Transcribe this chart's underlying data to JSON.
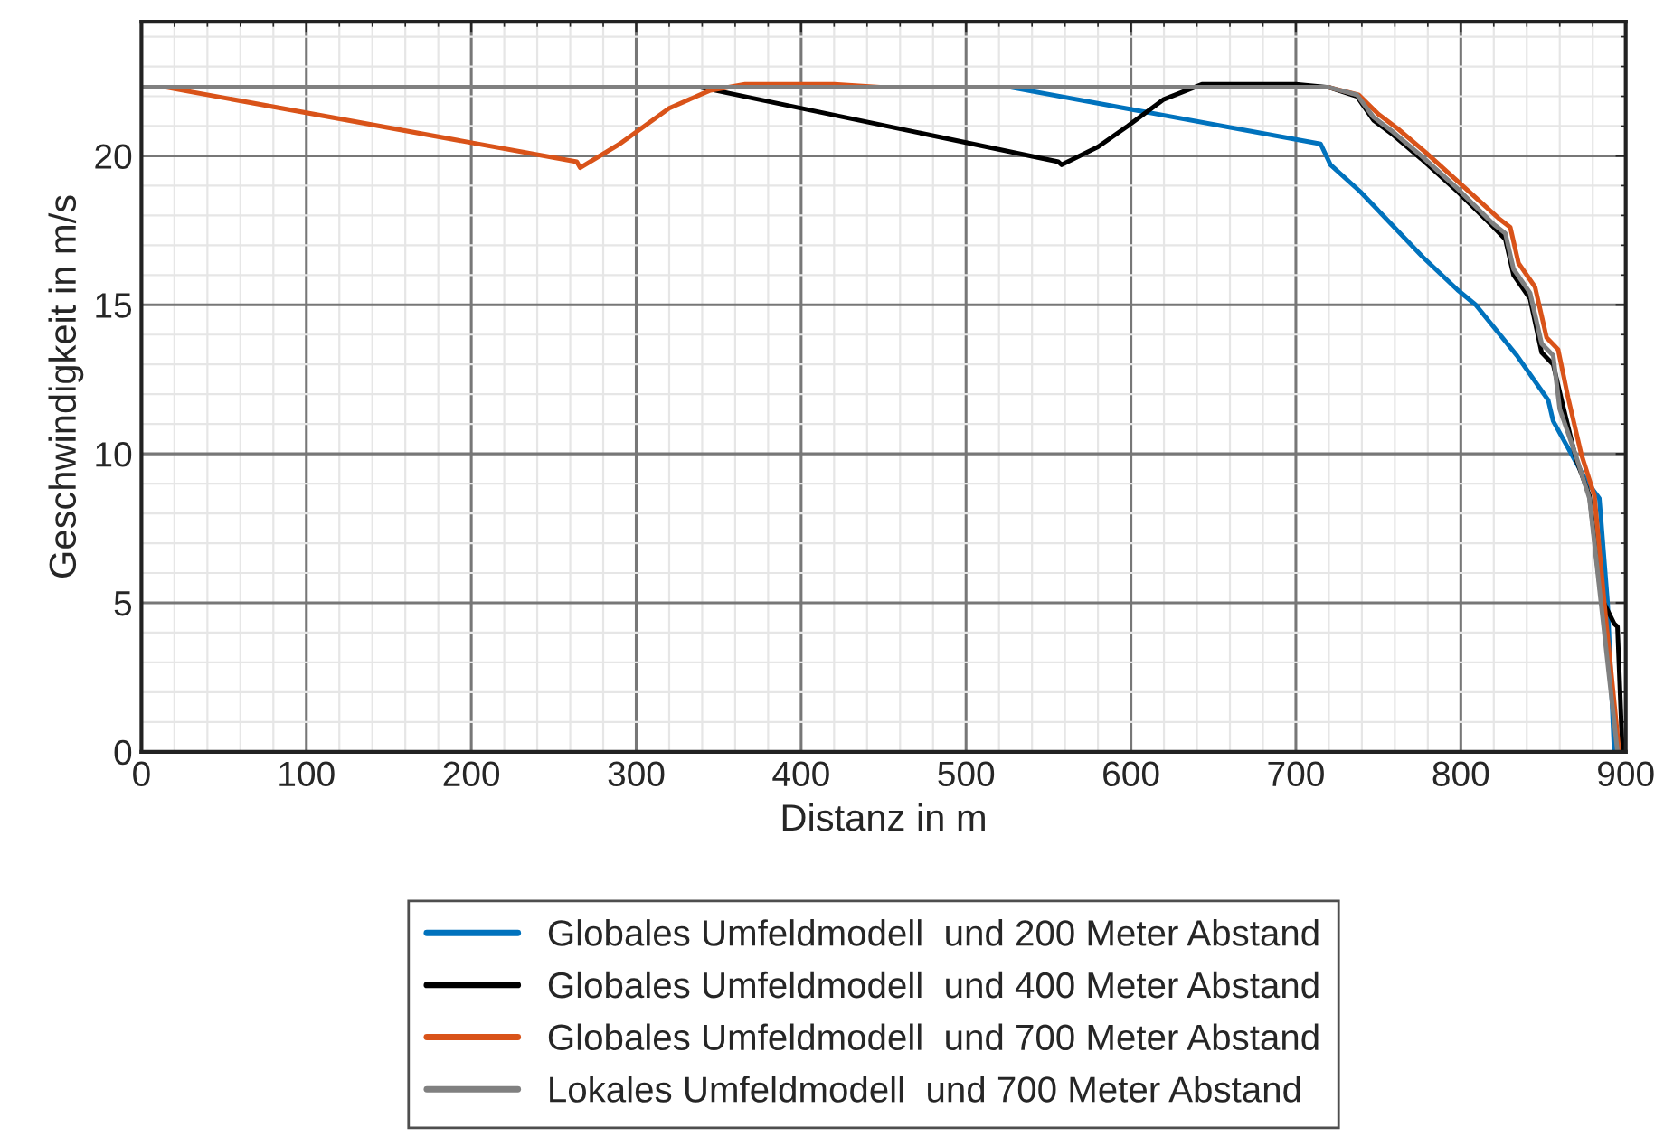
{
  "chart_data": {
    "type": "line",
    "xlabel": "Distanz in m",
    "ylabel": "Geschwindigkeit in m/s",
    "xlim": [
      0,
      900
    ],
    "ylim": [
      0,
      24.5
    ],
    "xticks": [
      0,
      100,
      200,
      300,
      400,
      500,
      600,
      700,
      800,
      900
    ],
    "yticks": [
      0,
      5,
      10,
      15,
      20
    ],
    "grid": true,
    "legend": "bottom",
    "line_style": "solid",
    "marker": "none",
    "series": [
      {
        "name": "Globales Umfeldmodell  und 200 Meter Abstand",
        "color": "#0072bd",
        "x": [
          0,
          527,
          715,
          721,
          739,
          758,
          777,
          798,
          809,
          834,
          853,
          856,
          876,
          884,
          889,
          893
        ],
        "values": [
          22.3,
          22.3,
          20.4,
          19.7,
          18.8,
          17.7,
          16.6,
          15.5,
          15.0,
          13.3,
          11.8,
          11.1,
          9.1,
          8.5,
          5.0,
          0
        ]
      },
      {
        "name": "Globales Umfeldmodell  und 400 Meter Abstand",
        "color": "#000000",
        "x": [
          0,
          339,
          556,
          558,
          580,
          598,
          620,
          643,
          700,
          720,
          737,
          747,
          759,
          776,
          798,
          820,
          827,
          832,
          842,
          849,
          856,
          862,
          870,
          878,
          885,
          893,
          895,
          898
        ],
        "values": [
          22.3,
          22.3,
          19.8,
          19.7,
          20.3,
          21.0,
          21.9,
          22.4,
          22.4,
          22.3,
          22.0,
          21.2,
          20.7,
          19.9,
          18.8,
          17.6,
          17.2,
          16.0,
          15.2,
          13.4,
          13.0,
          11.6,
          9.8,
          8.6,
          5.2,
          4.3,
          4.2,
          0
        ]
      },
      {
        "name": "Globales Umfeldmodell  und 700 Meter Abstand",
        "color": "#d95319",
        "x": [
          0,
          15,
          264,
          266,
          290,
          320,
          345,
          366,
          420,
          450,
          720,
          738,
          750,
          762,
          779,
          801,
          823,
          830,
          835,
          845,
          852,
          859,
          865,
          873,
          881,
          887,
          896
        ],
        "values": [
          22.3,
          22.3,
          19.8,
          19.6,
          20.4,
          21.6,
          22.2,
          22.4,
          22.4,
          22.3,
          22.3,
          22.05,
          21.4,
          20.9,
          20.1,
          19.0,
          17.9,
          17.6,
          16.4,
          15.6,
          13.9,
          13.5,
          11.9,
          10.0,
          8.6,
          5.0,
          0
        ]
      },
      {
        "name": "Lokales Umfeldmodell  und 700 Meter Abstand",
        "color": "#808080",
        "x": [
          0,
          720,
          737,
          747,
          759,
          776,
          798,
          820,
          827,
          832,
          842,
          849,
          856,
          860,
          870,
          878,
          885,
          895
        ],
        "values": [
          22.3,
          22.3,
          22.05,
          21.3,
          20.8,
          20.0,
          18.9,
          17.7,
          17.4,
          16.2,
          15.4,
          13.7,
          13.3,
          11.5,
          9.9,
          8.5,
          5.0,
          0
        ]
      }
    ]
  }
}
